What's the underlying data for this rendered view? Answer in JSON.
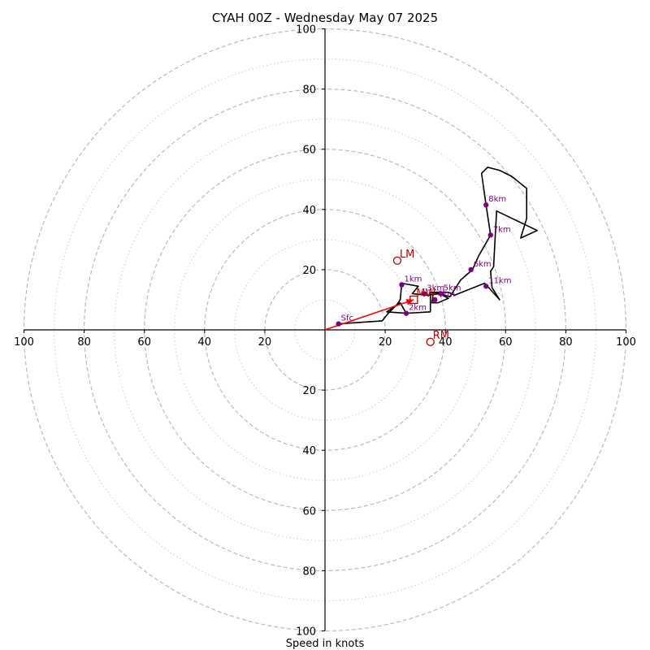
{
  "chart_data": {
    "type": "scatter",
    "title": "CYAH 00Z - Wednesday May 07 2025",
    "xlabel": "Speed in knots",
    "ylabel": "",
    "xlim": [
      -100,
      100
    ],
    "ylim": [
      -100,
      100
    ],
    "grid": true,
    "ring_major": [
      20,
      40,
      60,
      80,
      100
    ],
    "ring_minor": [
      10,
      30,
      50,
      70,
      90
    ],
    "x_tick_values": [
      -100,
      -80,
      -60,
      -40,
      -20,
      20,
      40,
      60,
      80,
      100
    ],
    "x_tick_labels": [
      "100",
      "80",
      "60",
      "40",
      "20",
      "20",
      "40",
      "60",
      "80",
      "100"
    ],
    "y_tick_values": [
      100,
      80,
      60,
      40,
      20,
      -20,
      -40,
      -60,
      -80,
      -100
    ],
    "y_tick_labels": [
      "100",
      "80",
      "60",
      "40",
      "20",
      "20",
      "40",
      "60",
      "80",
      "100"
    ],
    "hodograph": [
      [
        4.5,
        2.0
      ],
      [
        19,
        3.0
      ],
      [
        21,
        5.5
      ],
      [
        24,
        8.5
      ],
      [
        25,
        10
      ],
      [
        25.5,
        15.5
      ],
      [
        31,
        14.5
      ],
      [
        29,
        12.0
      ],
      [
        34,
        11.5
      ],
      [
        38,
        12.0
      ],
      [
        41,
        10.5
      ],
      [
        37.5,
        9.0
      ],
      [
        35.5,
        9.0
      ],
      [
        36,
        12.5
      ],
      [
        41.5,
        11.0
      ],
      [
        45,
        16.5
      ],
      [
        49,
        20.0
      ],
      [
        51,
        24.5
      ],
      [
        55,
        31.5
      ],
      [
        53.5,
        41.5
      ],
      [
        52,
        52.0
      ],
      [
        54,
        54.0
      ],
      [
        58,
        53.0
      ],
      [
        62,
        51.0
      ],
      [
        67,
        47.0
      ],
      [
        67,
        37.0
      ],
      [
        65,
        30.5
      ],
      [
        70.5,
        33.0
      ],
      [
        57,
        39.5
      ],
      [
        56,
        21.0
      ],
      [
        55,
        19.5
      ],
      [
        55.5,
        14.0
      ],
      [
        58,
        10.0
      ],
      [
        53.5,
        15.0
      ],
      [
        53,
        15.5
      ],
      [
        43,
        11.5
      ],
      [
        41,
        12.5
      ],
      [
        35,
        12.5
      ],
      [
        35,
        6.0
      ],
      [
        27,
        5.5
      ],
      [
        20.5,
        6.0
      ],
      [
        25,
        9.0
      ],
      [
        27,
        5.5
      ]
    ],
    "height_markers": [
      {
        "label": "Sfc",
        "x": 4.5,
        "y": 2.0
      },
      {
        "label": "1km",
        "x": 25.5,
        "y": 15.0
      },
      {
        "label": "2km",
        "x": 27,
        "y": 5.5
      },
      {
        "label": "3km",
        "x": 33,
        "y": 12.0
      },
      {
        "label": "4km",
        "x": 36.5,
        "y": 10.0
      },
      {
        "label": "5km",
        "x": 38.5,
        "y": 12.0
      },
      {
        "label": "6km",
        "x": 48.5,
        "y": 20.0
      },
      {
        "label": "7km",
        "x": 55,
        "y": 31.5
      },
      {
        "label": "8km",
        "x": 53.5,
        "y": 41.5
      },
      {
        "label": "11km",
        "x": 53.5,
        "y": 14.5
      }
    ],
    "storm_motion": [
      {
        "label": "LM",
        "x": 24,
        "y": 23,
        "shape": "circle"
      },
      {
        "label": "RM",
        "x": 35,
        "y": -4,
        "shape": "circle"
      },
      {
        "label": "MW",
        "x": 29.5,
        "y": 10,
        "shape": "square"
      }
    ],
    "mean_wind_vector": {
      "from": [
        0,
        0
      ],
      "to": [
        29.5,
        10
      ]
    },
    "colors": {
      "hodograph_line": "#000000",
      "height_marker": "#800080",
      "storm_motion": "#c00000",
      "mean_wind_arrow": "#ff0000",
      "grid_major": "#bbbbbb",
      "grid_minor": "#cccccc"
    }
  }
}
